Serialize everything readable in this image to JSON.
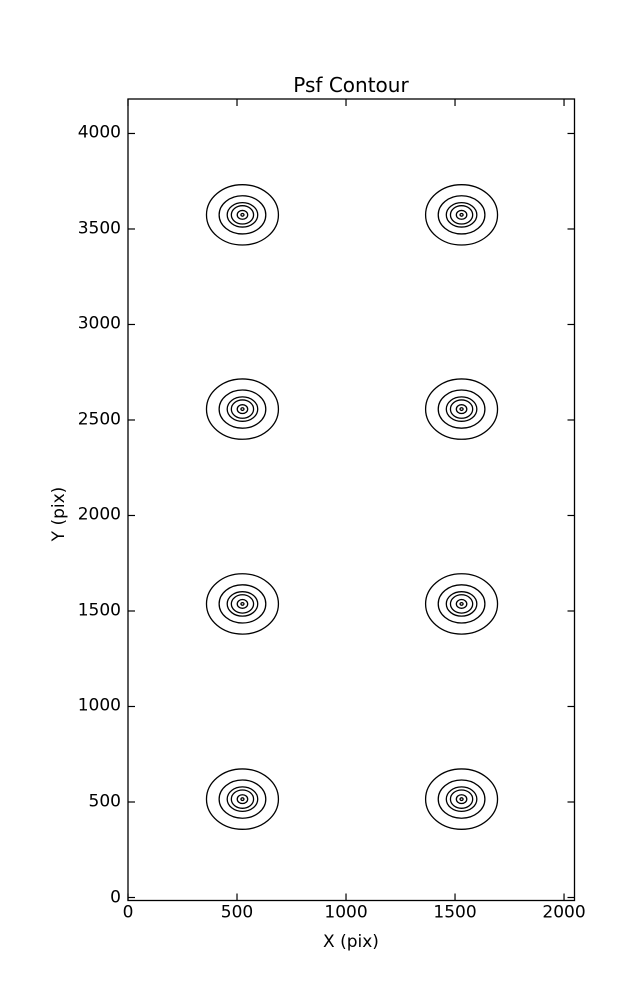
{
  "chart_data": {
    "type": "contour",
    "title": "Psf Contour",
    "xlabel": "X (pix)",
    "ylabel": "Y (pix)",
    "xlim": [
      0,
      2048
    ],
    "ylim": [
      0,
      4180
    ],
    "x_ticks": [
      0,
      500,
      1000,
      1500,
      2000
    ],
    "y_ticks": [
      0,
      500,
      1000,
      1500,
      2000,
      2500,
      3000,
      3500,
      4000
    ],
    "grid": false,
    "legend": "none",
    "line_color": "#000000",
    "background": "#ffffff",
    "sources": [
      {
        "x": 525,
        "y": 515
      },
      {
        "x": 1530,
        "y": 515
      },
      {
        "x": 525,
        "y": 1537
      },
      {
        "x": 1530,
        "y": 1537
      },
      {
        "x": 525,
        "y": 2557
      },
      {
        "x": 1530,
        "y": 2557
      },
      {
        "x": 525,
        "y": 3574
      },
      {
        "x": 1530,
        "y": 3574
      }
    ],
    "contour_levels_radii": [
      [
        165,
        158
      ],
      [
        107,
        100
      ],
      [
        70,
        64
      ],
      [
        51,
        48
      ],
      [
        24,
        23
      ],
      [
        7,
        7
      ]
    ]
  }
}
